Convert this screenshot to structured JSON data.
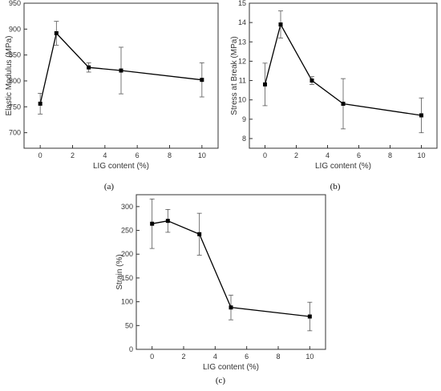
{
  "chart_data": [
    {
      "type": "line",
      "panel_label": "(a)",
      "xlabel": "LIG content (%)",
      "ylabel": "Elastic Modulus (MPa)",
      "xlim": [
        -1,
        11
      ],
      "ylim": [
        670,
        950
      ],
      "xticks": [
        "0",
        "2",
        "4",
        "6",
        "8",
        "10"
      ],
      "yticks": [
        "700",
        "750",
        "800",
        "850",
        "900",
        "950"
      ],
      "x": [
        0,
        1,
        3,
        5,
        10
      ],
      "series": [
        {
          "values": [
            756,
            892,
            826,
            820,
            802
          ],
          "errors": [
            20,
            23,
            9,
            45,
            33
          ]
        }
      ],
      "grid": false,
      "legend": "none"
    },
    {
      "type": "line",
      "panel_label": "(b)",
      "xlabel": "LIG content (%)",
      "ylabel": "Stress at Break (MPa)",
      "xlim": [
        -1,
        11
      ],
      "ylim": [
        7.5,
        15
      ],
      "xticks": [
        "0",
        "2",
        "4",
        "6",
        "8",
        "10"
      ],
      "yticks": [
        "8",
        "9",
        "10",
        "11",
        "12",
        "13",
        "14",
        "15"
      ],
      "x": [
        0,
        1,
        3,
        5,
        10
      ],
      "series": [
        {
          "values": [
            10.8,
            13.9,
            11.0,
            9.8,
            9.2
          ],
          "errors": [
            1.1,
            0.7,
            0.2,
            1.3,
            0.9
          ]
        }
      ],
      "grid": false,
      "legend": "none"
    },
    {
      "type": "line",
      "panel_label": "(c)",
      "xlabel": "LIG content (%)",
      "ylabel": "Strain (%)",
      "xlim": [
        -1,
        11
      ],
      "ylim": [
        0,
        325
      ],
      "xticks": [
        "0",
        "2",
        "4",
        "6",
        "8",
        "10"
      ],
      "yticks": [
        "0",
        "50",
        "100",
        "150",
        "200",
        "250",
        "300"
      ],
      "x": [
        0,
        1,
        3,
        5,
        10
      ],
      "series": [
        {
          "values": [
            264,
            270,
            242,
            88,
            69
          ],
          "errors": [
            52,
            24,
            44,
            26,
            30
          ]
        }
      ],
      "grid": false,
      "legend": "none"
    }
  ],
  "style": {
    "line_color": "#000000",
    "frame_color": "#333333",
    "marker": "square"
  }
}
